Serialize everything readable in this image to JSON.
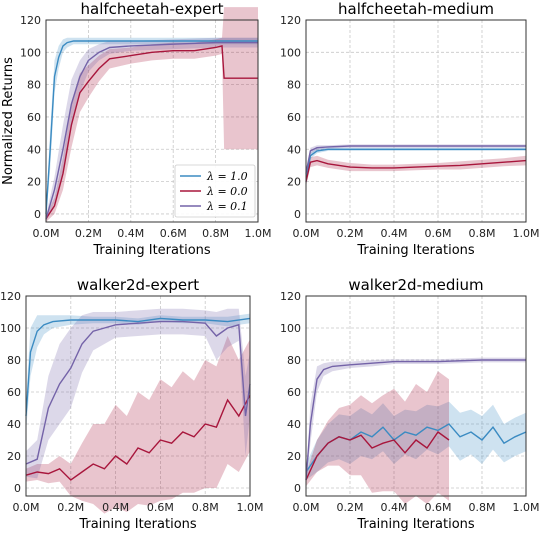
{
  "colors": {
    "l10": "#3b8bc2",
    "l00": "#a8163c",
    "l01": "#7463a8"
  },
  "chart_data": [
    {
      "type": "line",
      "title": "halfcheetah-expert",
      "xlabel": "Training Iterations",
      "ylabel": "Normalized Returns",
      "xlim": [
        0,
        1000000
      ],
      "ylim": [
        -5,
        120
      ],
      "xticks": [
        "0.0M",
        "0.2M",
        "0.4M",
        "0.6M",
        "0.8M",
        "1.0M"
      ],
      "yticks": [
        "0",
        "20",
        "40",
        "60",
        "80",
        "100",
        "120"
      ],
      "legend": {
        "placement": "center-right",
        "entries": [
          "λ = 1.0",
          "λ = 0.0",
          "λ = 0.1"
        ]
      },
      "series": [
        {
          "name": "λ = 1.0",
          "color": "#3b8bc2",
          "x": [
            0,
            20000,
            40000,
            60000,
            80000,
            100000,
            130000,
            200000,
            400000,
            600000,
            800000,
            1000000
          ],
          "y": [
            0,
            40,
            85,
            97,
            104,
            106,
            107,
            107,
            107,
            107,
            107,
            107
          ],
          "band": [
            3,
            12,
            10,
            7,
            4,
            3,
            2,
            2,
            2,
            2,
            2,
            2
          ]
        },
        {
          "name": "λ = 0.0",
          "color": "#a8163c",
          "x": [
            0,
            40000,
            80000,
            120000,
            160000,
            200000,
            250000,
            300000,
            400000,
            500000,
            600000,
            700000,
            800000,
            830000,
            840000,
            900000,
            1000000
          ],
          "y": [
            -3,
            5,
            25,
            55,
            75,
            82,
            90,
            96,
            98,
            100,
            101,
            101,
            103,
            104,
            84,
            84,
            84
          ],
          "band": [
            2,
            5,
            10,
            14,
            12,
            10,
            8,
            6,
            5,
            5,
            5,
            5,
            5,
            5,
            44,
            44,
            44
          ]
        },
        {
          "name": "λ = 0.1",
          "color": "#7463a8",
          "x": [
            0,
            40000,
            80000,
            120000,
            160000,
            200000,
            250000,
            300000,
            400000,
            600000,
            800000,
            1000000
          ],
          "y": [
            -3,
            15,
            40,
            68,
            85,
            95,
            100,
            103,
            104,
            105,
            106,
            106
          ],
          "band": [
            2,
            8,
            15,
            15,
            10,
            7,
            5,
            4,
            3,
            3,
            3,
            3
          ]
        }
      ]
    },
    {
      "type": "line",
      "title": "halfcheetah-medium",
      "xlabel": "Training Iterations",
      "ylabel": "",
      "xlim": [
        0,
        1000000
      ],
      "ylim": [
        -5,
        120
      ],
      "xticks": [
        "0.0M",
        "0.2M",
        "0.4M",
        "0.6M",
        "0.8M",
        "1.0M"
      ],
      "yticks": [
        "0",
        "20",
        "40",
        "60",
        "80",
        "100",
        "120"
      ],
      "series": [
        {
          "name": "λ = 1.0",
          "color": "#3b8bc2",
          "x": [
            0,
            20000,
            50000,
            100000,
            200000,
            400000,
            600000,
            800000,
            1000000
          ],
          "y": [
            20,
            36,
            39,
            40,
            40,
            40,
            40,
            40,
            40
          ],
          "band": [
            3,
            2,
            1.5,
            1,
            1,
            1,
            1,
            1,
            1
          ]
        },
        {
          "name": "λ = 0.0",
          "color": "#a8163c",
          "x": [
            0,
            20000,
            50000,
            100000,
            150000,
            200000,
            300000,
            400000,
            500000,
            600000,
            700000,
            800000,
            900000,
            1000000
          ],
          "y": [
            20,
            32,
            33,
            31,
            30,
            29,
            28.5,
            28.5,
            29,
            29.5,
            30,
            31,
            32,
            33
          ],
          "band": [
            3,
            3,
            3,
            2.5,
            2.5,
            2.5,
            2,
            2,
            2,
            2,
            2.5,
            2.5,
            2.5,
            3
          ]
        },
        {
          "name": "λ = 0.1",
          "color": "#7463a8",
          "x": [
            0,
            20000,
            50000,
            100000,
            200000,
            400000,
            600000,
            800000,
            1000000
          ],
          "y": [
            25,
            39,
            41,
            41.5,
            42,
            42,
            42,
            42,
            42
          ],
          "band": [
            3,
            2,
            1.5,
            1,
            1,
            1,
            1,
            1,
            1
          ]
        }
      ]
    },
    {
      "type": "line",
      "title": "walker2d-expert",
      "xlabel": "Training Iterations",
      "ylabel": "",
      "xlim": [
        0,
        1000000
      ],
      "ylim": [
        -5,
        120
      ],
      "xticks": [
        "0.0M",
        "0.2M",
        "0.4M",
        "0.6M",
        "0.8M",
        "1.0M"
      ],
      "yticks": [
        "0",
        "20",
        "40",
        "60",
        "80",
        "100",
        "120"
      ],
      "series": [
        {
          "name": "λ = 1.0",
          "color": "#3b8bc2",
          "x": [
            0,
            20000,
            50000,
            80000,
            120000,
            200000,
            300000,
            400000,
            500000,
            600000,
            700000,
            800000,
            900000,
            1000000
          ],
          "y": [
            45,
            85,
            98,
            102,
            104,
            105,
            105,
            105,
            104,
            106,
            105,
            105,
            104,
            106
          ],
          "band": [
            10,
            15,
            10,
            6,
            4,
            3,
            2,
            2,
            2,
            2,
            2,
            2,
            3,
            3
          ]
        },
        {
          "name": "λ = 0.0",
          "color": "#a8163c",
          "x": [
            0,
            50000,
            100000,
            150000,
            200000,
            250000,
            300000,
            350000,
            400000,
            450000,
            500000,
            550000,
            600000,
            650000,
            700000,
            750000,
            800000,
            850000,
            900000,
            950000,
            1000000
          ],
          "y": [
            8,
            10,
            9,
            12,
            5,
            10,
            15,
            12,
            20,
            15,
            25,
            22,
            30,
            28,
            35,
            32,
            40,
            38,
            55,
            45,
            58
          ],
          "band": [
            4,
            5,
            6,
            8,
            10,
            18,
            25,
            28,
            32,
            30,
            35,
            33,
            38,
            35,
            38,
            35,
            40,
            38,
            40,
            35,
            35
          ]
        },
        {
          "name": "λ = 0.1",
          "color": "#7463a8",
          "x": [
            0,
            50000,
            100000,
            150000,
            200000,
            250000,
            300000,
            350000,
            400000,
            500000,
            600000,
            700000,
            800000,
            850000,
            900000,
            950000,
            980000,
            1000000
          ],
          "y": [
            15,
            18,
            50,
            65,
            75,
            90,
            98,
            100,
            102,
            103,
            104,
            104,
            103,
            95,
            100,
            102,
            45,
            65
          ],
          "band": [
            8,
            12,
            20,
            25,
            25,
            18,
            12,
            10,
            8,
            8,
            8,
            8,
            8,
            15,
            12,
            10,
            25,
            20
          ]
        }
      ]
    },
    {
      "type": "line",
      "title": "walker2d-medium",
      "xlabel": "Training Iterations",
      "ylabel": "",
      "xlim": [
        0,
        1000000
      ],
      "ylim": [
        -5,
        120
      ],
      "xticks": [
        "0.0M",
        "0.2M",
        "0.4M",
        "0.6M",
        "0.8M",
        "1.0M"
      ],
      "yticks": [
        "0",
        "20",
        "40",
        "60",
        "80",
        "100",
        "120"
      ],
      "series": [
        {
          "name": "λ = 1.0",
          "color": "#3b8bc2",
          "x": [
            0,
            50000,
            100000,
            150000,
            200000,
            250000,
            300000,
            350000,
            400000,
            450000,
            500000,
            550000,
            600000,
            650000,
            700000,
            750000,
            800000,
            850000,
            900000,
            950000,
            1000000
          ],
          "y": [
            10,
            20,
            28,
            32,
            30,
            35,
            32,
            38,
            30,
            35,
            33,
            38,
            36,
            40,
            32,
            35,
            30,
            38,
            28,
            32,
            35
          ],
          "band": [
            5,
            10,
            12,
            14,
            15,
            15,
            14,
            15,
            15,
            14,
            15,
            14,
            15,
            14,
            15,
            14,
            15,
            14,
            12,
            12,
            12
          ]
        },
        {
          "name": "λ = 0.0",
          "color": "#a8163c",
          "x": [
            0,
            50000,
            100000,
            150000,
            200000,
            250000,
            300000,
            350000,
            400000,
            450000,
            500000,
            550000,
            600000,
            650000
          ],
          "y": [
            5,
            20,
            28,
            32,
            30,
            33,
            25,
            28,
            30,
            22,
            30,
            25,
            35,
            30
          ],
          "band": [
            4,
            10,
            14,
            18,
            22,
            25,
            28,
            30,
            32,
            32,
            35,
            35,
            38,
            38
          ]
        },
        {
          "name": "λ = 0.1",
          "color": "#7463a8",
          "x": [
            0,
            20000,
            50000,
            80000,
            120000,
            200000,
            300000,
            400000,
            600000,
            800000,
            1000000
          ],
          "y": [
            5,
            40,
            68,
            74,
            76,
            77,
            78,
            79,
            79,
            80,
            80
          ],
          "band": [
            3,
            12,
            8,
            4,
            3,
            2,
            2,
            1.5,
            1.5,
            1.5,
            1.5
          ]
        }
      ]
    }
  ]
}
